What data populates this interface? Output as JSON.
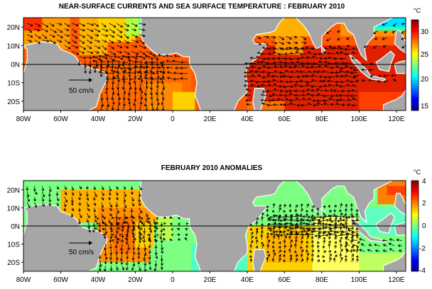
{
  "panels": [
    {
      "id": "sst",
      "title": "NEAR-SURFACE CURRENTS AND SEA SURFACE TEMPERATURE : FEBRUARY 2010",
      "colorbar": {
        "unit": "°C",
        "ticks": [
          "30",
          "25",
          "20",
          "15"
        ],
        "range": [
          14,
          32
        ],
        "colormap": "jet"
      },
      "scale_arrow_label": "50 cm/s"
    },
    {
      "id": "anomaly",
      "title": "FEBRUARY 2010 ANOMALIES",
      "colorbar": {
        "unit": "°C",
        "ticks": [
          "4",
          "2",
          "0",
          "-2",
          "-4"
        ],
        "range": [
          -4,
          4
        ],
        "colormap": "jet"
      },
      "scale_arrow_label": "50 cm/s"
    }
  ],
  "axes": {
    "lat_labels": [
      "20N",
      "10N",
      "0N",
      "10S",
      "20S"
    ],
    "lon_labels": [
      "80W",
      "60W",
      "40W",
      "20W",
      "0",
      "20E",
      "40E",
      "60E",
      "80E",
      "100E",
      "120E"
    ],
    "lon_range": [
      -80,
      125
    ],
    "lat_range": [
      -25,
      25
    ]
  },
  "colors": {
    "land": "#a6a6a6",
    "arrow": "#000000",
    "equator_line": "#000000"
  }
}
